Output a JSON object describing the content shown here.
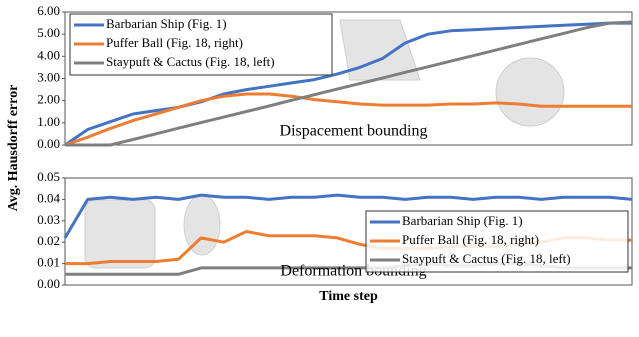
{
  "chart_data": [
    {
      "type": "line",
      "ylabel": "Avg. Hausdorff error",
      "annotation": "Dispacement bounding",
      "x": [
        0,
        4,
        8,
        12,
        16,
        20,
        24,
        28,
        32,
        36,
        40,
        44,
        48,
        52,
        56,
        60,
        64,
        68,
        72,
        76,
        80,
        84,
        88,
        92,
        96,
        100
      ],
      "xlim": [
        0,
        100
      ],
      "ylim": [
        0,
        6
      ],
      "yticks": [
        {
          "value": 0,
          "label": "0.00"
        },
        {
          "value": 1,
          "label": "1.00"
        },
        {
          "value": 2,
          "label": "2.00"
        },
        {
          "value": 3,
          "label": "3.00"
        },
        {
          "value": 4,
          "label": "4.00"
        },
        {
          "value": 5,
          "label": "5.00"
        },
        {
          "value": 6,
          "label": "6.00"
        }
      ],
      "legend": "upper left",
      "series": [
        {
          "name": "Barbarian Ship (Fig. 1)",
          "color": "#4472c4",
          "values": [
            0,
            0.7,
            1.05,
            1.4,
            1.55,
            1.7,
            1.95,
            2.3,
            2.5,
            2.65,
            2.8,
            2.95,
            3.2,
            3.5,
            3.9,
            4.6,
            5.0,
            5.15,
            5.2,
            5.25,
            5.3,
            5.35,
            5.4,
            5.45,
            5.5,
            5.5
          ]
        },
        {
          "name": "Puffer Ball (Fig. 18, right)",
          "color": "#ed7d31",
          "values": [
            0,
            0.35,
            0.75,
            1.1,
            1.4,
            1.7,
            2.0,
            2.2,
            2.3,
            2.3,
            2.2,
            2.05,
            1.95,
            1.85,
            1.8,
            1.8,
            1.8,
            1.85,
            1.85,
            1.9,
            1.85,
            1.75,
            1.75,
            1.75,
            1.75,
            1.75
          ]
        },
        {
          "name": "Staypuft & Cactus (Fig. 18, left)",
          "color": "#7f7f7f",
          "values": [
            0,
            0,
            0,
            0.25,
            0.5,
            0.76,
            1.01,
            1.26,
            1.51,
            1.76,
            2.02,
            2.27,
            2.52,
            2.77,
            3.02,
            3.28,
            3.53,
            3.78,
            4.03,
            4.28,
            4.54,
            4.79,
            5.04,
            5.29,
            5.5,
            5.55
          ]
        }
      ]
    },
    {
      "type": "line",
      "xlabel": "Time step",
      "annotation": "Deformation bounding",
      "x": [
        0,
        4,
        8,
        12,
        16,
        20,
        24,
        28,
        32,
        36,
        40,
        44,
        48,
        52,
        56,
        60,
        64,
        68,
        72,
        76,
        80,
        84,
        88,
        92,
        96,
        100
      ],
      "xlim": [
        0,
        100
      ],
      "ylim": [
        0,
        0.05
      ],
      "yticks": [
        {
          "value": 0,
          "label": "0.00"
        },
        0.01,
        0.02,
        0.03,
        0.04,
        0.05
      ],
      "legend": "lower right",
      "series": [
        {
          "name": "Barbarian Ship (Fig. 1)",
          "color": "#4472c4",
          "values": [
            0.022,
            0.04,
            0.041,
            0.04,
            0.041,
            0.04,
            0.042,
            0.041,
            0.041,
            0.04,
            0.041,
            0.041,
            0.042,
            0.041,
            0.041,
            0.04,
            0.041,
            0.041,
            0.04,
            0.041,
            0.041,
            0.04,
            0.041,
            0.041,
            0.041,
            0.04
          ]
        },
        {
          "name": "Puffer Ball (Fig. 18, right)",
          "color": "#ed7d31",
          "values": [
            0.01,
            0.01,
            0.011,
            0.011,
            0.011,
            0.012,
            0.022,
            0.02,
            0.025,
            0.023,
            0.023,
            0.023,
            0.022,
            0.019,
            0.017,
            0.017,
            0.017,
            0.018,
            0.018,
            0.018,
            0.019,
            0.02,
            0.022,
            0.022,
            0.021,
            0.021
          ]
        },
        {
          "name": "Staypuft & Cactus (Fig. 18, left)",
          "color": "#7f7f7f",
          "values": [
            0.005,
            0.005,
            0.005,
            0.005,
            0.005,
            0.005,
            0.008,
            0.008,
            0.008,
            0.008,
            0.008,
            0.008,
            0.008,
            0.008,
            0.008,
            0.009,
            0.01,
            0.009,
            0.009,
            0.01,
            0.01,
            0.009,
            0.008,
            0.008,
            0.008,
            0.008
          ]
        }
      ]
    }
  ]
}
